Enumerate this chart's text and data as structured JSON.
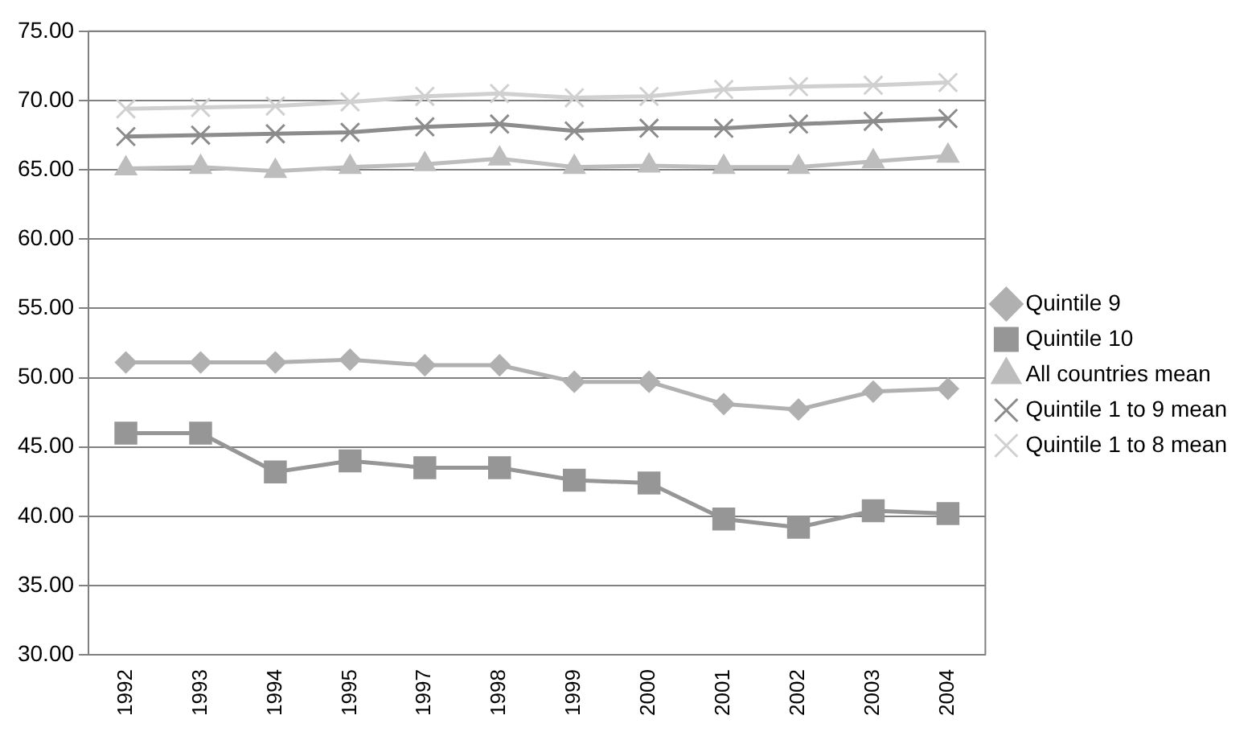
{
  "chart_data": {
    "type": "line",
    "categories": [
      "1992",
      "1993",
      "1994",
      "1995",
      "1997",
      "1998",
      "1999",
      "2000",
      "2001",
      "2002",
      "2003",
      "2004"
    ],
    "ylim": [
      30,
      75
    ],
    "yticks": [
      {
        "value": 30,
        "label": "30.00"
      },
      {
        "value": 35,
        "label": "35.00"
      },
      {
        "value": 40,
        "label": "40.00"
      },
      {
        "value": 45,
        "label": "45.00"
      },
      {
        "value": 50,
        "label": "50.00"
      },
      {
        "value": 55,
        "label": "55.00"
      },
      {
        "value": 60,
        "label": "60.00"
      },
      {
        "value": 65,
        "label": "65.00"
      },
      {
        "value": 70,
        "label": "70.00"
      },
      {
        "value": 75,
        "label": "75.00"
      }
    ],
    "grid": "y",
    "legend": "right",
    "series": [
      {
        "name": "Quintile 9",
        "color": "#b0b0b0",
        "marker": "diamond",
        "values": [
          51.1,
          51.1,
          51.1,
          51.3,
          50.9,
          50.9,
          49.7,
          49.7,
          48.1,
          47.7,
          49.0,
          49.2
        ]
      },
      {
        "name": "Quintile 10",
        "color": "#969696",
        "marker": "square",
        "values": [
          46.0,
          46.0,
          43.2,
          44.0,
          43.5,
          43.5,
          42.6,
          42.4,
          39.8,
          39.2,
          40.4,
          40.2
        ]
      },
      {
        "name": "All countries mean",
        "color": "#bdbdbd",
        "marker": "triangle",
        "values": [
          65.1,
          65.2,
          64.9,
          65.2,
          65.4,
          65.8,
          65.2,
          65.3,
          65.2,
          65.2,
          65.6,
          66.0
        ]
      },
      {
        "name": "Quintile 1 to 9 mean",
        "color": "#8c8c8c",
        "marker": "cross",
        "values": [
          67.4,
          67.5,
          67.6,
          67.7,
          68.1,
          68.3,
          67.8,
          68.0,
          68.0,
          68.3,
          68.5,
          68.7
        ]
      },
      {
        "name": "Quintile 1 to 8 mean",
        "color": "#d0d0d0",
        "marker": "cross",
        "values": [
          69.4,
          69.5,
          69.6,
          69.9,
          70.3,
          70.5,
          70.2,
          70.3,
          70.8,
          71.0,
          71.1,
          71.3
        ]
      }
    ]
  }
}
